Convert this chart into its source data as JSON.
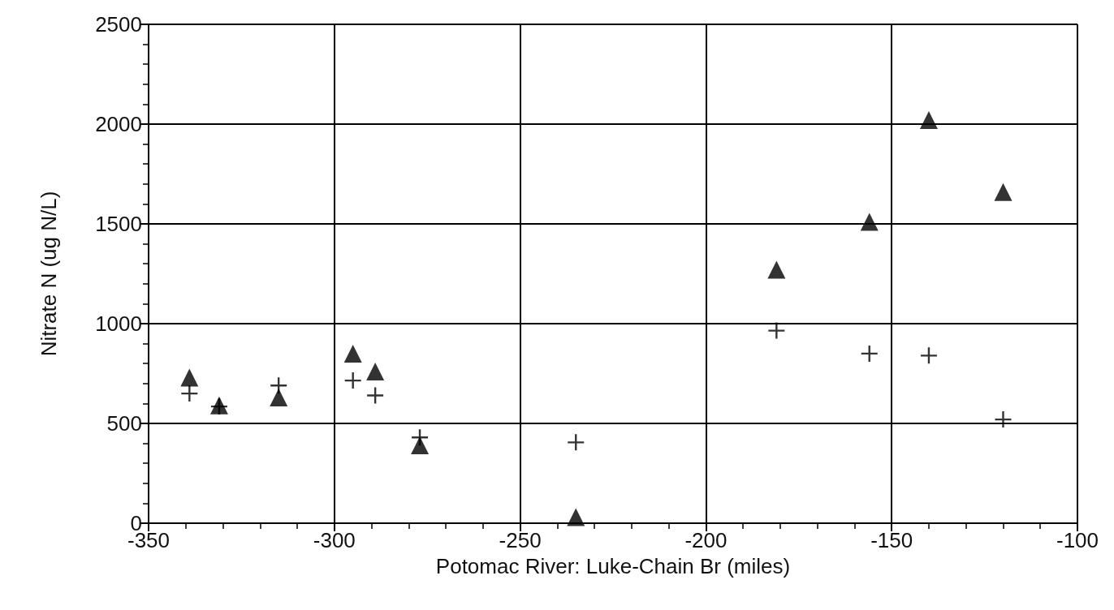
{
  "chart_data": {
    "type": "scatter",
    "xlabel": "Potomac River: Luke-Chain Br (miles)",
    "ylabel": "Nitrate N (ug N/L)",
    "xlim": [
      -350,
      -100
    ],
    "xticks": [
      -350,
      -300,
      -250,
      -200,
      -150,
      -100
    ],
    "ylim": [
      0,
      2500
    ],
    "yticks": [
      0,
      500,
      1000,
      1500,
      2000,
      2500
    ],
    "grid": true,
    "series": [
      {
        "color": "#000000",
        "marker": "triangle",
        "x": [
          -339,
          -331,
          -315,
          -295,
          -289,
          -277,
          -235,
          -181,
          -156,
          -140,
          -120
        ],
        "values": [
          730,
          590,
          630,
          850,
          760,
          390,
          30,
          1270,
          1510,
          2020,
          1660
        ]
      },
      {
        "color": "#000000",
        "marker": "cross",
        "x": [
          -339,
          -331,
          -315,
          -295,
          -289,
          -277,
          -235,
          -181,
          -156,
          -140,
          -120
        ],
        "values": [
          650,
          585,
          690,
          715,
          640,
          430,
          405,
          965,
          850,
          840,
          520
        ]
      }
    ]
  }
}
